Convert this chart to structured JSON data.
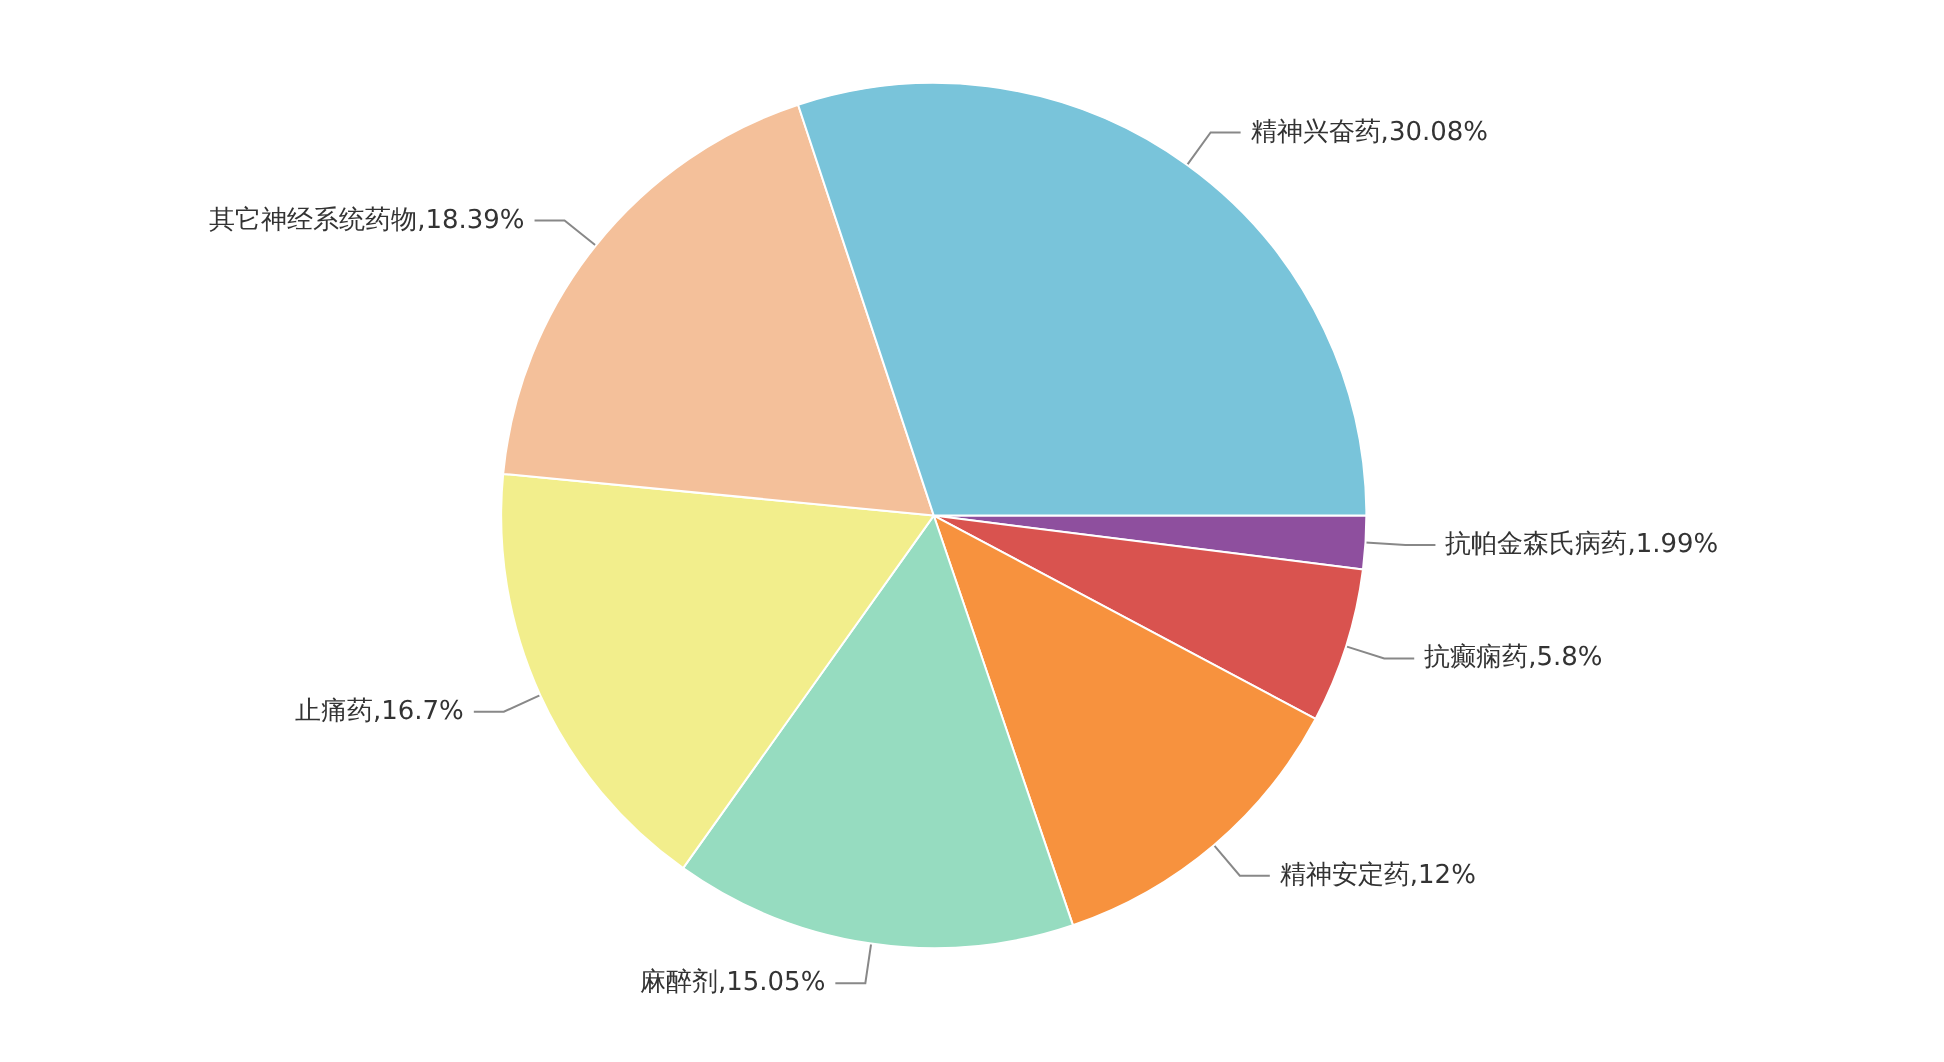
{
  "chart_data": {
    "type": "pie",
    "categories": [
      "抗帕金森氏病药",
      "抗癫痫药",
      "精神安定药",
      "麻醉剂",
      "止痛药",
      "其它神经系统药物",
      "精神兴奋药"
    ],
    "values": [
      1.99,
      5.8,
      12,
      15.05,
      16.7,
      18.39,
      30.08
    ],
    "value_labels": [
      ",1.99%",
      ",5.8%",
      ",12%",
      ",15.05%",
      ",16.7%",
      ",18.39%",
      ",30.08%"
    ],
    "colors": [
      "#8e4f9e",
      "#d9534f",
      "#f7923e",
      "#96dcc0",
      "#f2ee8c",
      "#f4c09a",
      "#79c4da"
    ]
  }
}
